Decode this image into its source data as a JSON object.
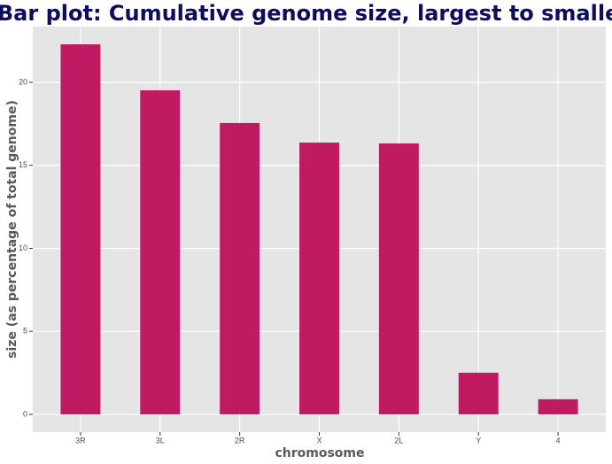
{
  "chart_data": {
    "type": "bar",
    "title": "Bar plot: Cumulative genome size, largest to smallest",
    "x_label": "chromosome",
    "y_label": "size (as percentage of total genome)",
    "categories": [
      "3R",
      "3L",
      "2R",
      "X",
      "2L",
      "Y",
      "4"
    ],
    "values": [
      22.29,
      19.52,
      17.55,
      16.37,
      16.32,
      2.51,
      0.91
    ],
    "color": "#c01a63",
    "ylim": [
      -1.07,
      23.36
    ],
    "yticks": [
      0,
      5,
      10,
      15,
      20
    ],
    "grid": true
  }
}
